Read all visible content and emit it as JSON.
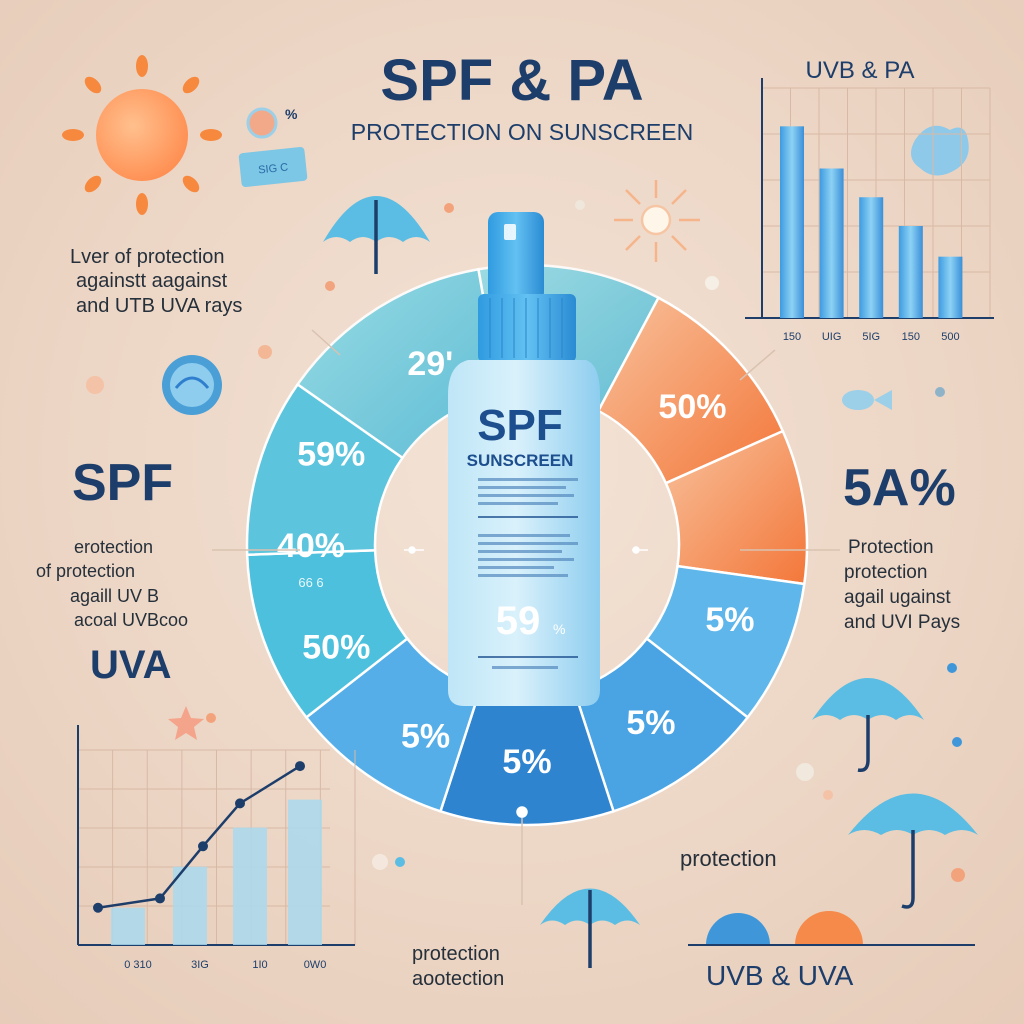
{
  "header": {
    "title": "SPF & PA",
    "subtitle": "PROTECTION ON SUNSCREEN"
  },
  "left": {
    "caption": [
      "Lver of protection",
      "againstt aagainst",
      "and UTB UVA rays"
    ],
    "spf_label": "SPF",
    "spf_text": [
      "erotection",
      "of protection",
      "agaill UV B",
      "acoal UVBcoo"
    ],
    "uva_label": "UVA"
  },
  "right": {
    "big_value": "5A%",
    "text": [
      "Protection",
      "protection",
      "agail ugainst",
      "and UVI Pays"
    ],
    "protection_label": "protection",
    "footer": "UVB  & UVA"
  },
  "bottom": {
    "text": [
      "protection",
      "aootection"
    ]
  },
  "top_chart": {
    "title": "UVB & PA",
    "tick_labels": [
      "150",
      "UIG",
      "5IG",
      "150",
      "500"
    ]
  },
  "bottom_chart": {
    "tick_labels": [
      "0 310",
      "3IG",
      "1I0",
      "0W0"
    ]
  },
  "bottle": {
    "brand": "SPF",
    "product": "SUNSCREEN",
    "value": "59",
    "suffix": "%"
  },
  "ring_labels": [
    "29'",
    "59%",
    "40%",
    "50%",
    "5%",
    "5%",
    "5%",
    "5%",
    "50%"
  ],
  "ring_sublabel": "66 6",
  "sticker": {
    "value": "%",
    "tag": "SIG C"
  },
  "colors": {
    "title": "#1d3e6b",
    "cyan": "#5fc6d8",
    "blue": "#3f97da",
    "deep_blue": "#2f7fce",
    "orange": "#f58a4a",
    "orange_light": "#f7b07e",
    "sun": "#ff9a5a"
  },
  "chart_data": [
    {
      "type": "bar",
      "title": "UVB & PA",
      "categories": [
        "150",
        "UIG",
        "5IG",
        "150",
        "500"
      ],
      "values": [
        100,
        78,
        63,
        48,
        32
      ],
      "ylim": [
        0,
        120
      ],
      "grid": true
    },
    {
      "type": "bar",
      "categories": [
        "0 310",
        "3IG",
        "1I0",
        "0W0"
      ],
      "series": [
        {
          "values": [
            20,
            42,
            63,
            78
          ]
        },
        {
          "type": "line",
          "values": [
            25,
            53,
            76,
            96
          ]
        }
      ],
      "ylim": [
        0,
        110
      ],
      "grid": true
    }
  ]
}
